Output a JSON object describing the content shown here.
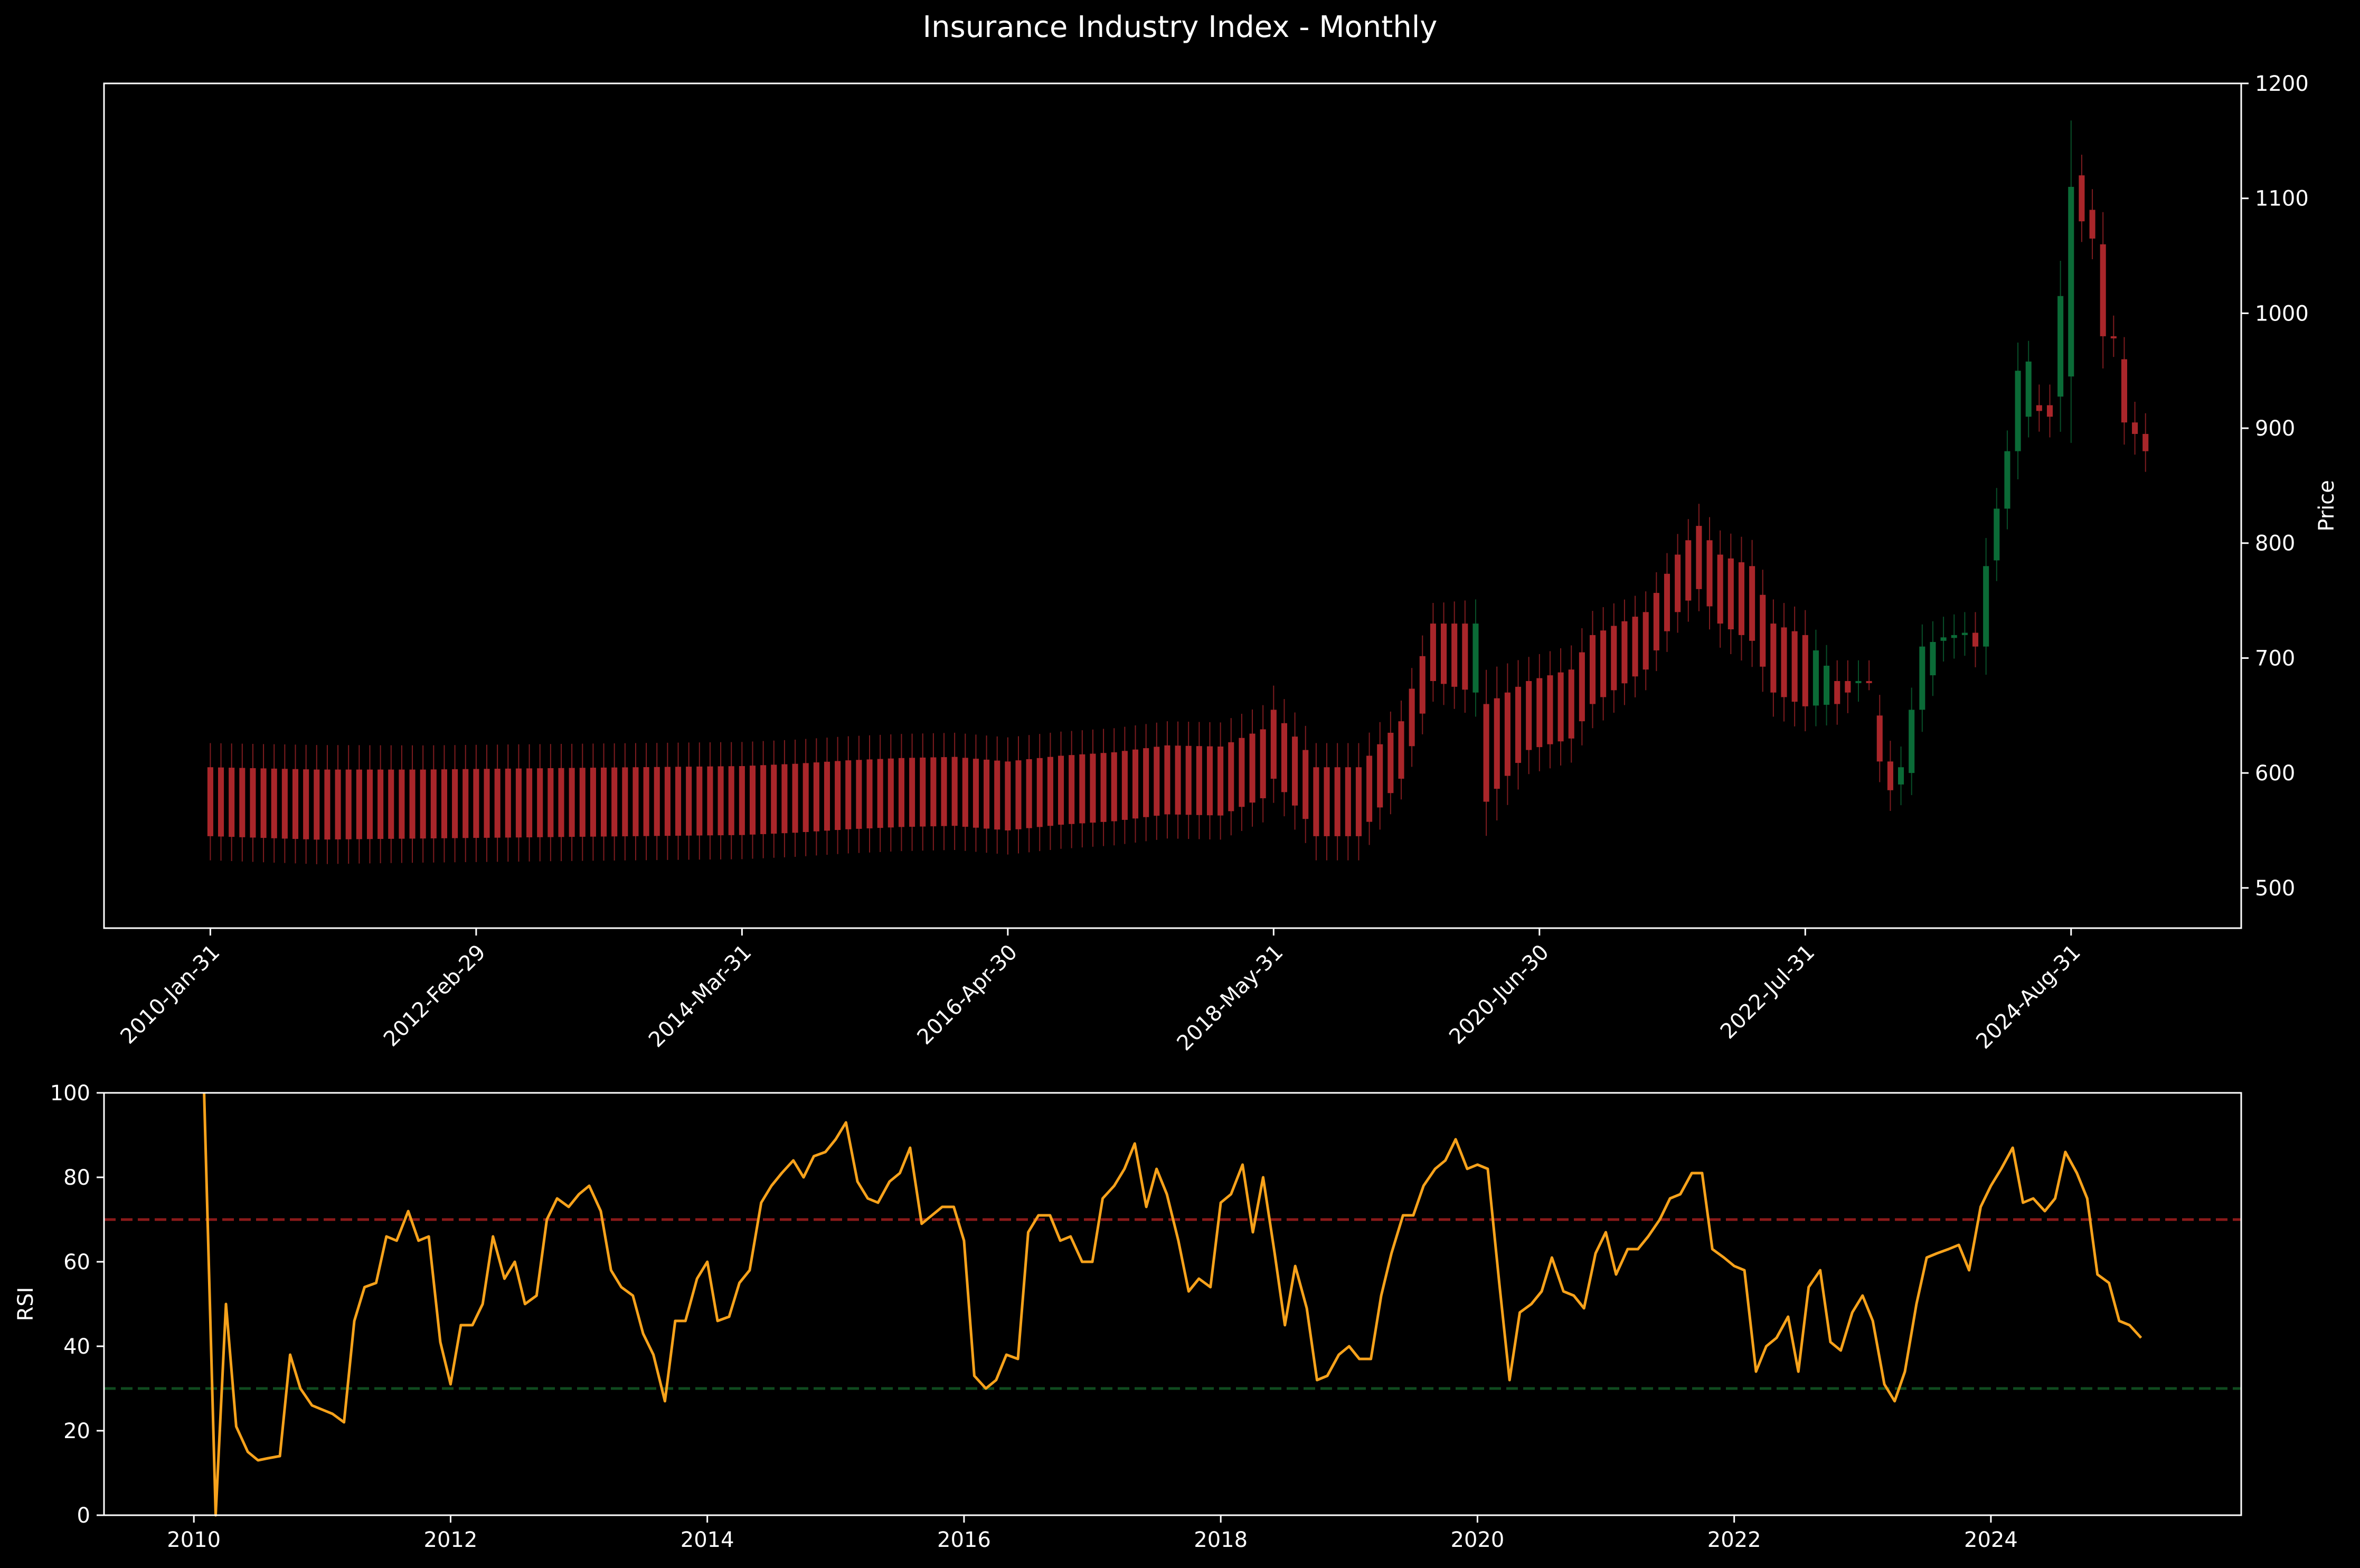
{
  "title": "Insurance Industry Index - Monthly",
  "chart_data": [
    {
      "type": "candlestick",
      "ylabel": "Price",
      "ylim": [
        465,
        1200
      ],
      "y_ticks": [
        500,
        600,
        700,
        800,
        900,
        1000,
        1100,
        1200
      ],
      "x_tick_labels": [
        "2010-Jan-31",
        "2012-Feb-29",
        "2014-Mar-31",
        "2016-Apr-30",
        "2018-May-31",
        "2020-Jun-30",
        "2022-Jul-31",
        "2024-Aug-31"
      ],
      "x_tick_indices": [
        0,
        25,
        50,
        75,
        100,
        125,
        150,
        175
      ],
      "x_range": [
        -10,
        191
      ],
      "colors": {
        "up": "#0b6b37",
        "down": "#a9262a"
      },
      "anchors": [
        [
          0,
          545,
          605
        ],
        [
          10,
          542,
          603
        ],
        [
          20,
          543,
          603
        ],
        [
          30,
          544,
          604
        ],
        [
          40,
          545,
          605
        ],
        [
          50,
          546,
          606
        ],
        [
          55,
          548,
          608
        ],
        [
          60,
          551,
          611
        ],
        [
          65,
          553,
          613
        ],
        [
          70,
          554,
          614
        ],
        [
          75,
          550,
          610
        ],
        [
          80,
          555,
          615
        ],
        [
          85,
          558,
          618
        ],
        [
          90,
          564,
          624
        ],
        [
          95,
          563,
          623
        ],
        [
          99,
          578,
          638
        ],
        [
          100,
          595,
          655
        ],
        [
          103,
          560,
          620
        ],
        [
          104,
          545,
          605
        ],
        [
          108,
          545,
          605
        ],
        [
          112,
          595,
          645
        ],
        [
          115,
          680,
          730
        ],
        [
          119,
          670,
          730
        ],
        [
          120,
          575,
          660
        ],
        [
          124,
          620,
          680
        ],
        [
          128,
          630,
          690
        ],
        [
          130,
          660,
          720
        ],
        [
          135,
          690,
          740
        ],
        [
          138,
          740,
          790
        ],
        [
          140,
          760,
          815
        ],
        [
          142,
          730,
          790
        ],
        [
          145,
          715,
          780
        ],
        [
          147,
          670,
          730
        ],
        [
          150,
          658,
          720
        ],
        [
          153,
          660,
          680
        ],
        [
          156,
          690,
          680
        ],
        [
          157,
          610,
          650
        ],
        [
          158,
          585,
          610
        ],
        [
          159,
          590,
          605
        ],
        [
          160,
          600,
          655
        ],
        [
          161,
          655,
          710
        ],
        [
          163,
          715,
          718
        ],
        [
          165,
          720,
          722
        ],
        [
          166,
          710,
          722
        ],
        [
          167,
          710,
          780
        ],
        [
          168,
          785,
          830
        ],
        [
          169,
          830,
          880
        ],
        [
          170,
          880,
          950
        ],
        [
          171,
          910,
          958
        ],
        [
          172,
          915,
          920
        ],
        [
          173,
          910,
          920
        ],
        [
          175,
          945,
          1110
        ],
        [
          176,
          1080,
          1120
        ],
        [
          177,
          1065,
          1090
        ],
        [
          178,
          980,
          1060
        ],
        [
          179,
          980,
          980
        ],
        [
          180,
          905,
          960
        ],
        [
          181,
          895,
          905
        ],
        [
          182,
          880,
          895
        ]
      ]
    },
    {
      "type": "line",
      "ylabel": "RSI",
      "ylim": [
        0,
        100
      ],
      "y_ticks": [
        0,
        20,
        40,
        60,
        80,
        100
      ],
      "x_ticks": [
        2010,
        2012,
        2014,
        2016,
        2018,
        2020,
        2022,
        2024
      ],
      "xlim": [
        2009.3,
        2025.95
      ],
      "overbought": 70,
      "oversold": 30,
      "colors": {
        "line": "#f7a21b",
        "overbought": "#8b1a1a",
        "oversold": "#0f4a1f"
      },
      "x": [
        2010.08,
        2010.17,
        2010.25,
        2010.33,
        2010.42,
        2010.5,
        2010.58,
        2010.67,
        2010.75,
        2010.83,
        2010.92,
        2011.0,
        2011.08,
        2011.17,
        2011.25,
        2011.33,
        2011.42,
        2011.5,
        2011.58,
        2011.67,
        2011.75,
        2011.83,
        2011.92,
        2012.0,
        2012.08,
        2012.17,
        2012.25,
        2012.33,
        2012.42,
        2012.5,
        2012.58,
        2012.67,
        2012.75,
        2012.83,
        2012.92,
        2013.0,
        2013.08,
        2013.17,
        2013.25,
        2013.33,
        2013.42,
        2013.5,
        2013.58,
        2013.67,
        2013.75,
        2013.83,
        2013.92,
        2014.0,
        2014.08,
        2014.17,
        2014.25,
        2014.33,
        2014.42,
        2014.5,
        2014.58,
        2014.67,
        2014.75,
        2014.83,
        2014.92,
        2015.0,
        2015.08,
        2015.17,
        2015.25,
        2015.33,
        2015.42,
        2015.5,
        2015.58,
        2015.67,
        2015.75,
        2015.83,
        2015.92,
        2016.0,
        2016.08,
        2016.17,
        2016.25,
        2016.33,
        2016.42,
        2016.5,
        2016.58,
        2016.67,
        2016.75,
        2016.83,
        2016.92,
        2017.0,
        2017.08,
        2017.17,
        2017.25,
        2017.33,
        2017.42,
        2017.5,
        2017.58,
        2017.67,
        2017.75,
        2017.83,
        2017.92,
        2018.0,
        2018.08,
        2018.17,
        2018.25,
        2018.33,
        2018.42,
        2018.5,
        2018.58,
        2018.67,
        2018.75,
        2018.83,
        2018.92,
        2019.0,
        2019.08,
        2019.17,
        2019.25,
        2019.33,
        2019.42,
        2019.5,
        2019.58,
        2019.67,
        2019.75,
        2019.83,
        2019.92,
        2020.0,
        2020.08,
        2020.17,
        2020.25,
        2020.33,
        2020.42,
        2020.5,
        2020.58,
        2020.67,
        2020.75,
        2020.83,
        2020.92,
        2021.0,
        2021.08,
        2021.17,
        2021.25,
        2021.33,
        2021.42,
        2021.5,
        2021.58,
        2021.67,
        2021.75,
        2021.83,
        2021.92,
        2022.0,
        2022.08,
        2022.17,
        2022.25,
        2022.33,
        2022.42,
        2022.5,
        2022.58,
        2022.67,
        2022.75,
        2022.83,
        2022.92,
        2023.0,
        2023.08,
        2023.17,
        2023.25,
        2023.33,
        2023.42,
        2023.5,
        2023.58,
        2023.67,
        2023.75,
        2023.83,
        2023.92,
        2024.0,
        2024.08,
        2024.17,
        2024.25,
        2024.33,
        2024.42,
        2024.5,
        2024.58,
        2024.67,
        2024.75,
        2024.83,
        2024.92,
        2025.0,
        2025.08,
        2025.17
      ],
      "values": [
        100,
        0,
        50,
        21,
        15,
        13,
        13.5,
        14,
        38,
        30,
        26,
        25,
        24,
        22,
        46,
        54,
        55,
        66,
        65,
        72,
        65,
        66,
        41,
        31,
        45,
        45,
        50,
        66,
        56,
        60,
        50,
        52,
        70,
        75,
        73,
        76,
        78,
        72,
        58,
        54,
        52,
        43,
        38,
        27,
        46,
        46,
        56,
        60,
        46,
        47,
        55,
        58,
        74,
        78,
        81,
        84,
        80,
        85,
        86,
        89,
        93,
        79,
        75,
        74,
        79,
        81,
        87,
        69,
        71,
        73,
        73,
        65,
        33,
        30,
        32,
        38,
        37,
        67,
        71,
        71,
        65,
        66,
        60,
        60,
        75,
        78,
        82,
        88,
        73,
        82,
        76,
        65,
        53,
        56,
        54,
        74,
        76,
        83,
        67,
        80,
        62,
        45,
        59,
        49,
        32,
        33,
        38,
        40,
        37,
        37,
        52,
        62,
        71,
        71,
        78,
        82,
        84,
        89,
        82,
        83,
        82,
        55,
        32,
        48,
        50,
        53,
        61,
        53,
        52,
        49,
        62,
        67,
        57,
        63,
        63,
        66,
        70,
        75,
        76,
        81,
        81,
        63,
        61,
        59,
        58,
        34,
        40,
        42,
        47,
        34,
        54,
        58,
        41,
        39,
        48,
        52,
        46,
        31,
        27,
        34,
        50,
        61,
        62,
        63,
        64,
        58,
        73,
        78,
        82,
        87,
        74,
        75,
        72,
        75,
        86,
        81,
        75,
        57,
        55,
        46,
        45,
        42
      ]
    }
  ]
}
